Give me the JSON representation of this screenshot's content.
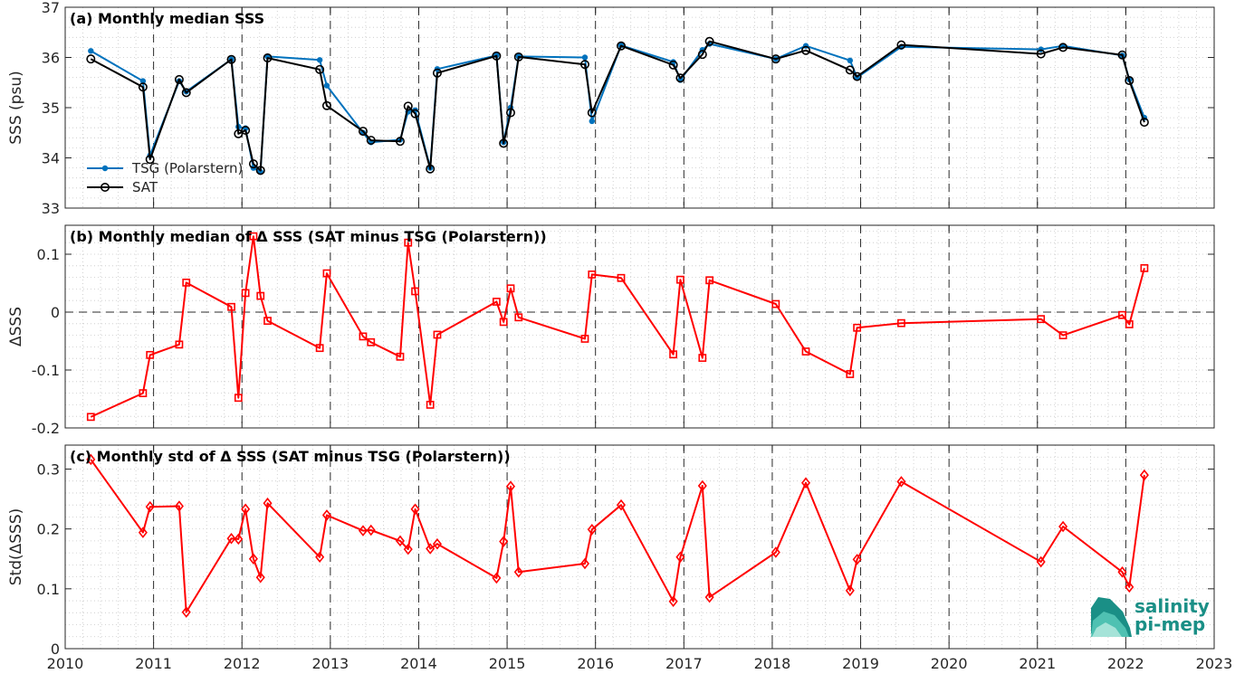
{
  "colors": {
    "tsg": "#0072BD",
    "sat": "#000000",
    "delta": "#ff0000",
    "logo": "#1a8f86"
  },
  "logo": {
    "line1": "salinity",
    "line2": "pi-mep"
  },
  "chart_data": [
    {
      "type": "line",
      "title": "(a) Monthly median SSS",
      "ylabel": "SSS (psu)",
      "xlabel": "",
      "xlim": [
        2010,
        2023
      ],
      "ylim": [
        33,
        37
      ],
      "yticks": [
        33,
        34,
        35,
        36,
        37
      ],
      "xticks": [
        2010,
        2011,
        2012,
        2013,
        2014,
        2015,
        2016,
        2017,
        2018,
        2019,
        2020,
        2021,
        2022,
        2023
      ],
      "grid": true,
      "legend_position": "bottom-left",
      "series": [
        {
          "name": "TSG (Polarstern)",
          "marker": "dot",
          "x": [
            2010.29,
            2010.88,
            2010.96,
            2011.29,
            2011.37,
            2011.88,
            2011.96,
            2012.04,
            2012.13,
            2012.21,
            2012.29,
            2012.88,
            2012.96,
            2013.37,
            2013.46,
            2013.79,
            2013.88,
            2013.96,
            2014.13,
            2014.21,
            2014.88,
            2014.96,
            2015.04,
            2015.13,
            2015.88,
            2015.96,
            2016.29,
            2016.88,
            2016.96,
            2017.21,
            2017.29,
            2018.04,
            2018.38,
            2018.88,
            2018.96,
            2019.46,
            2021.04,
            2021.29,
            2021.96,
            2022.04,
            2022.21
          ],
          "values": [
            36.13,
            35.53,
            34.05,
            35.53,
            35.32,
            35.96,
            34.62,
            34.59,
            33.8,
            33.72,
            36.02,
            35.95,
            35.44,
            34.5,
            34.31,
            34.36,
            34.92,
            34.95,
            33.8,
            35.77,
            36.04,
            34.31,
            35.0,
            36.02,
            36.0,
            34.73,
            36.24,
            35.91,
            35.55,
            36.15,
            36.27,
            35.97,
            36.23,
            35.94,
            35.6,
            36.21,
            36.16,
            36.23,
            36.04,
            35.56,
            34.8
          ]
        },
        {
          "name": "SAT",
          "marker": "circle",
          "x": [
            2010.29,
            2010.88,
            2010.96,
            2011.29,
            2011.37,
            2011.88,
            2011.96,
            2012.04,
            2012.13,
            2012.21,
            2012.29,
            2012.88,
            2012.96,
            2013.37,
            2013.46,
            2013.79,
            2013.88,
            2013.96,
            2014.13,
            2014.21,
            2014.88,
            2014.96,
            2015.04,
            2015.13,
            2015.88,
            2015.96,
            2016.29,
            2016.88,
            2016.96,
            2017.21,
            2017.29,
            2018.04,
            2018.38,
            2018.88,
            2018.96,
            2019.46,
            2021.04,
            2021.29,
            2021.96,
            2022.04,
            2022.21
          ],
          "values": [
            35.97,
            35.41,
            33.97,
            35.56,
            35.3,
            35.96,
            34.48,
            34.55,
            33.88,
            33.75,
            35.99,
            35.76,
            35.04,
            34.53,
            34.35,
            34.33,
            35.03,
            34.88,
            33.78,
            35.69,
            36.03,
            34.29,
            34.9,
            36.01,
            35.86,
            34.9,
            36.23,
            35.85,
            35.59,
            36.06,
            36.32,
            35.97,
            36.14,
            35.75,
            35.62,
            36.25,
            36.07,
            36.2,
            36.05,
            35.54,
            34.71
          ]
        }
      ]
    },
    {
      "type": "line",
      "title": "(b) Monthly median of Δ SSS (SAT minus TSG (Polarstern))",
      "ylabel": "ΔSSS",
      "xlabel": "",
      "xlim": [
        2010,
        2023
      ],
      "ylim": [
        -0.2,
        0.15
      ],
      "yticks": [
        -0.2,
        -0.1,
        0,
        0.1
      ],
      "yticklabels": [
        "-0.2",
        "-0.1",
        "0",
        "0.1"
      ],
      "xticks": [
        2010,
        2011,
        2012,
        2013,
        2014,
        2015,
        2016,
        2017,
        2018,
        2019,
        2020,
        2021,
        2022,
        2023
      ],
      "grid": true,
      "zero_line": true,
      "series": [
        {
          "marker": "square",
          "x": [
            2010.29,
            2010.88,
            2010.96,
            2011.29,
            2011.37,
            2011.88,
            2011.96,
            2012.04,
            2012.13,
            2012.21,
            2012.29,
            2012.88,
            2012.96,
            2013.37,
            2013.46,
            2013.79,
            2013.88,
            2013.96,
            2014.13,
            2014.21,
            2014.88,
            2014.96,
            2015.04,
            2015.13,
            2015.88,
            2015.96,
            2016.29,
            2016.88,
            2016.96,
            2017.21,
            2017.29,
            2018.04,
            2018.38,
            2018.88,
            2018.96,
            2019.46,
            2021.04,
            2021.29,
            2021.96,
            2022.04,
            2022.21
          ],
          "values": [
            -0.181,
            -0.14,
            -0.074,
            -0.056,
            0.051,
            0.009,
            -0.148,
            0.033,
            0.131,
            0.028,
            -0.015,
            -0.062,
            0.067,
            -0.042,
            -0.052,
            -0.077,
            0.12,
            0.036,
            -0.16,
            -0.039,
            0.018,
            -0.017,
            0.041,
            -0.009,
            -0.046,
            0.065,
            0.059,
            -0.073,
            0.056,
            -0.079,
            0.055,
            0.014,
            -0.068,
            -0.107,
            -0.027,
            -0.019,
            -0.012,
            -0.04,
            -0.005,
            -0.021,
            0.076
          ]
        }
      ]
    },
    {
      "type": "line",
      "title": "(c) Monthly std of Δ SSS (SAT minus TSG (Polarstern))",
      "ylabel": "Std(ΔSSS)",
      "xlabel": "",
      "xlim": [
        2010,
        2023
      ],
      "ylim": [
        0,
        0.34
      ],
      "yticks": [
        0,
        0.1,
        0.2,
        0.3
      ],
      "yticklabels": [
        "0",
        "0.1",
        "0.2",
        "0.3"
      ],
      "xticks": [
        2010,
        2011,
        2012,
        2013,
        2014,
        2015,
        2016,
        2017,
        2018,
        2019,
        2020,
        2021,
        2022,
        2023
      ],
      "grid": true,
      "series": [
        {
          "marker": "diamond",
          "x": [
            2010.29,
            2010.88,
            2010.96,
            2011.29,
            2011.37,
            2011.88,
            2011.96,
            2012.04,
            2012.13,
            2012.21,
            2012.29,
            2012.88,
            2012.96,
            2013.37,
            2013.46,
            2013.79,
            2013.88,
            2013.96,
            2014.13,
            2014.21,
            2014.88,
            2014.96,
            2015.04,
            2015.13,
            2015.88,
            2015.96,
            2016.29,
            2016.88,
            2016.96,
            2017.21,
            2017.29,
            2018.04,
            2018.38,
            2018.88,
            2018.96,
            2019.46,
            2021.04,
            2021.29,
            2021.96,
            2022.04,
            2022.21
          ],
          "values": [
            0.316,
            0.194,
            0.237,
            0.238,
            0.061,
            0.184,
            0.183,
            0.233,
            0.15,
            0.119,
            0.243,
            0.153,
            0.223,
            0.197,
            0.198,
            0.18,
            0.166,
            0.233,
            0.167,
            0.175,
            0.118,
            0.179,
            0.271,
            0.128,
            0.142,
            0.199,
            0.24,
            0.079,
            0.153,
            0.272,
            0.086,
            0.161,
            0.277,
            0.097,
            0.149,
            0.279,
            0.145,
            0.204,
            0.128,
            0.103,
            0.29
          ]
        }
      ]
    }
  ]
}
